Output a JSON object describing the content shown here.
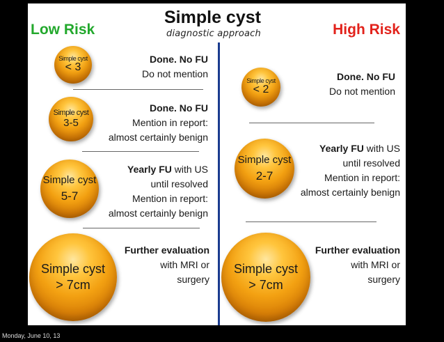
{
  "header": {
    "title": "Simple cyst",
    "subtitle": "diagnostic approach",
    "low_risk": "Low Risk",
    "high_risk": "High Risk"
  },
  "low": [
    {
      "cyst_label": "Simple cyst",
      "size": "< 3",
      "line1_bold": "Done. No FU",
      "line1_rest": "",
      "line2": "Do not mention",
      "line3": "",
      "line4": ""
    },
    {
      "cyst_label": "Simple cyst",
      "size": "3-5",
      "line1_bold": "Done. No FU",
      "line1_rest": "",
      "line2": "Mention in report:",
      "line3": "almost certainly benign",
      "line4": ""
    },
    {
      "cyst_label": "Simple cyst",
      "size": "5-7",
      "line1_bold": "Yearly FU",
      "line1_rest": " with US",
      "line2": "until resolved",
      "line3": "Mention in report:",
      "line4": "almost certainly benign"
    },
    {
      "cyst_label": "Simple cyst",
      "size": "> 7cm",
      "line1_bold": "Further evaluation",
      "line1_rest": "",
      "line2": "with MRI or",
      "line3": "surgery",
      "line4": ""
    }
  ],
  "high": [
    {
      "cyst_label": "Simple cyst",
      "size": "< 2",
      "line1_bold": "Done. No FU",
      "line1_rest": "",
      "line2": "Do not mention",
      "line3": "",
      "line4": ""
    },
    {
      "cyst_label": "Simple cyst",
      "size": "2-7",
      "line1_bold": "Yearly FU",
      "line1_rest": " with US",
      "line2": "until resolved",
      "line3": "Mention in report:",
      "line4": "almost certainly benign"
    },
    {
      "cyst_label": "Simple cyst",
      "size": "> 7cm",
      "line1_bold": "Further evaluation",
      "line1_rest": "",
      "line2": "with MRI or",
      "line3": "surgery",
      "line4": ""
    }
  ],
  "footer": {
    "timestamp": "Monday, June 10, 13"
  },
  "colors": {
    "low_risk": "#22a82c",
    "high_risk": "#e2221b",
    "divider": "#1b3b8f",
    "cyst": "#f3a112"
  }
}
